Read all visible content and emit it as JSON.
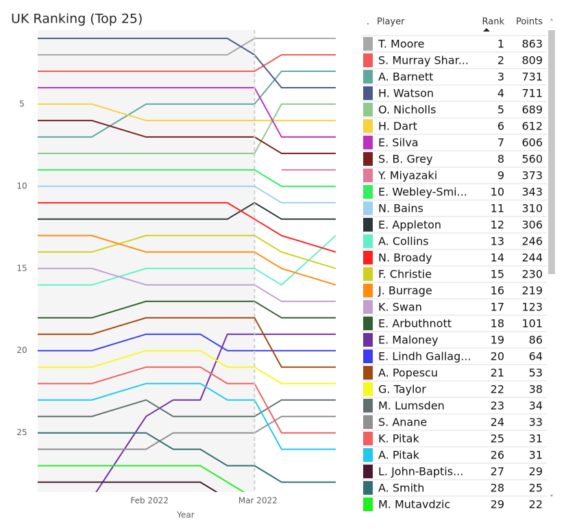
{
  "chart_data": {
    "type": "bump",
    "title": "UK Ranking (Top 25)",
    "x_label": "Year",
    "categories": [
      null,
      null,
      null,
      null,
      "Feb 2022",
      null,
      null,
      null,
      "Mar 2022",
      null,
      null,
      null
    ],
    "ylim": [
      28.6,
      0.5
    ],
    "yticks": [
      5,
      10,
      15,
      20,
      25
    ],
    "series": [
      {
        "name": "T. Moore",
        "color": "#a8a8a8",
        "rank": 1,
        "points": 863,
        "values": [
          2,
          2,
          2,
          2,
          2,
          2,
          2,
          2,
          1,
          1,
          1,
          1
        ]
      },
      {
        "name": "S. Murray Shar...",
        "color": "#f05a5a",
        "rank": 2,
        "points": 809,
        "values": [
          3,
          3,
          3,
          3,
          3,
          3,
          3,
          3,
          3,
          2,
          2,
          2
        ]
      },
      {
        "name": "A. Barnett",
        "color": "#5fa8a0",
        "rank": 3,
        "points": 731,
        "values": [
          7,
          7,
          7,
          6,
          5,
          5,
          5,
          5,
          5,
          3,
          3,
          3
        ]
      },
      {
        "name": "H. Watson",
        "color": "#4a5a8c",
        "rank": 4,
        "points": 711,
        "values": [
          1,
          1,
          1,
          1,
          1,
          1,
          1,
          1,
          2,
          4,
          4,
          4
        ]
      },
      {
        "name": "O. Nicholls",
        "color": "#90c890",
        "rank": 5,
        "points": 689,
        "values": [
          8,
          8,
          8,
          8,
          8,
          8,
          8,
          8,
          8,
          5,
          5,
          5
        ]
      },
      {
        "name": "H. Dart",
        "color": "#f8d040",
        "rank": 6,
        "points": 612,
        "values": [
          5,
          5,
          5,
          5.5,
          6,
          6,
          6,
          6,
          6,
          6,
          6,
          6
        ]
      },
      {
        "name": "E. Silva",
        "color": "#c030c0",
        "rank": 7,
        "points": 606,
        "values": [
          4,
          4,
          4,
          4,
          4,
          4,
          4,
          4,
          4,
          7,
          7,
          7
        ]
      },
      {
        "name": "S. B. Grey",
        "color": "#7a1e1e",
        "rank": 8,
        "points": 560,
        "values": [
          6,
          6,
          6,
          6.5,
          7,
          7,
          7,
          7,
          7,
          8,
          8,
          8
        ]
      },
      {
        "name": "Y. Miyazaki",
        "color": "#e07a9a",
        "rank": 9,
        "points": 373,
        "values": [
          null,
          null,
          null,
          null,
          null,
          null,
          null,
          null,
          null,
          9,
          9,
          9
        ]
      },
      {
        "name": "E. Webley-Smi...",
        "color": "#30f060",
        "rank": 10,
        "points": 343,
        "values": [
          9,
          9,
          9,
          9,
          9,
          9,
          9,
          9,
          9,
          10,
          10,
          10
        ]
      },
      {
        "name": "N. Bains",
        "color": "#a0d0f0",
        "rank": 11,
        "points": 310,
        "values": [
          10,
          10,
          10,
          10,
          10,
          10,
          10,
          10,
          10,
          11,
          11,
          11
        ]
      },
      {
        "name": "E. Appleton",
        "color": "#2a3838",
        "rank": 12,
        "points": 306,
        "values": [
          12,
          12,
          12,
          12,
          12,
          12,
          12,
          12,
          11,
          12,
          12,
          12
        ]
      },
      {
        "name": "A. Collins",
        "color": "#60f0c8",
        "rank": 13,
        "points": 246,
        "values": [
          16,
          16,
          16,
          15.5,
          15,
          15,
          15,
          15,
          15,
          16,
          14.5,
          13
        ]
      },
      {
        "name": "N. Broady",
        "color": "#ff2020",
        "rank": 14,
        "points": 244,
        "values": [
          11,
          11,
          11,
          11,
          11,
          11,
          11,
          11,
          12,
          13,
          13.5,
          14
        ]
      },
      {
        "name": "F. Christie",
        "color": "#d0d020",
        "rank": 15,
        "points": 230,
        "values": [
          14,
          14,
          14,
          13.5,
          13,
          13,
          13,
          13,
          13,
          14,
          14.5,
          15
        ]
      },
      {
        "name": "J. Burrage",
        "color": "#ff8c10",
        "rank": 16,
        "points": 219,
        "values": [
          13,
          13,
          13,
          13.5,
          14,
          14,
          14,
          14,
          14,
          15,
          15.5,
          16
        ]
      },
      {
        "name": "K. Swan",
        "color": "#c0a0d0",
        "rank": 17,
        "points": 123,
        "values": [
          15,
          15,
          15,
          15.5,
          16,
          16,
          16,
          16,
          16,
          17,
          17,
          17
        ]
      },
      {
        "name": "E. Arbuthnott",
        "color": "#306030",
        "rank": 18,
        "points": 101,
        "values": [
          18,
          18,
          18,
          17.5,
          17,
          17,
          17,
          17,
          17,
          18,
          18,
          18
        ]
      },
      {
        "name": "E. Maloney",
        "color": "#7030a0",
        "rank": 19,
        "points": 86,
        "values": [
          null,
          null,
          29,
          26.5,
          24,
          23,
          23,
          19,
          19,
          19,
          19,
          19
        ]
      },
      {
        "name": "E. Lindh Gallag...",
        "color": "#3c3cf0",
        "rank": 20,
        "points": 64,
        "values": [
          20,
          20,
          20,
          19.5,
          19,
          19,
          19,
          20,
          20,
          20,
          20,
          20
        ]
      },
      {
        "name": "A. Popescu",
        "color": "#a04a10",
        "rank": 21,
        "points": 53,
        "values": [
          19,
          19,
          19,
          18.5,
          18,
          18,
          18,
          18,
          18,
          21,
          21,
          21
        ]
      },
      {
        "name": "G. Taylor",
        "color": "#f8f820",
        "rank": 22,
        "points": 38,
        "values": [
          21,
          21,
          21,
          20.5,
          20,
          20,
          20,
          21,
          21,
          22,
          22,
          22
        ]
      },
      {
        "name": "M. Lumsden",
        "color": "#607070",
        "rank": 23,
        "points": 34,
        "values": [
          24,
          24,
          24,
          23.5,
          23,
          24,
          24,
          24,
          24,
          23,
          23,
          23
        ]
      },
      {
        "name": "S. Anane",
        "color": "#909090",
        "rank": 24,
        "points": 33,
        "values": [
          26,
          26,
          26,
          26,
          26,
          25,
          25,
          25,
          25,
          24,
          24,
          24
        ]
      },
      {
        "name": "K. Pitak",
        "color": "#f06060",
        "rank": 25,
        "points": 31,
        "values": [
          22,
          22,
          22,
          21.5,
          21,
          21,
          21,
          22,
          22,
          25,
          25,
          25
        ]
      },
      {
        "name": "A. Pitak",
        "color": "#20c8f0",
        "rank": 26,
        "points": 31,
        "values": [
          23,
          23,
          23,
          22.5,
          22,
          22,
          22,
          23,
          23,
          26,
          26,
          26
        ]
      },
      {
        "name": "L. John-Baptis...",
        "color": "#4a1830",
        "rank": 27,
        "points": 29,
        "values": [
          28,
          28,
          28,
          28,
          28,
          28,
          28,
          29,
          null,
          null,
          null,
          null
        ]
      },
      {
        "name": "A. Smith",
        "color": "#2f7070",
        "rank": 28,
        "points": 25,
        "values": [
          25,
          25,
          25,
          25,
          25,
          26,
          26,
          27,
          27,
          28,
          28,
          28
        ]
      },
      {
        "name": "M. Mutavdzic",
        "color": "#20f020",
        "rank": 29,
        "points": 22,
        "values": [
          27,
          27,
          27,
          27,
          27,
          27,
          27,
          28,
          29,
          null,
          null,
          null
        ]
      }
    ]
  },
  "table": {
    "columns": [
      ".",
      "Player",
      "Rank",
      "Points"
    ]
  }
}
